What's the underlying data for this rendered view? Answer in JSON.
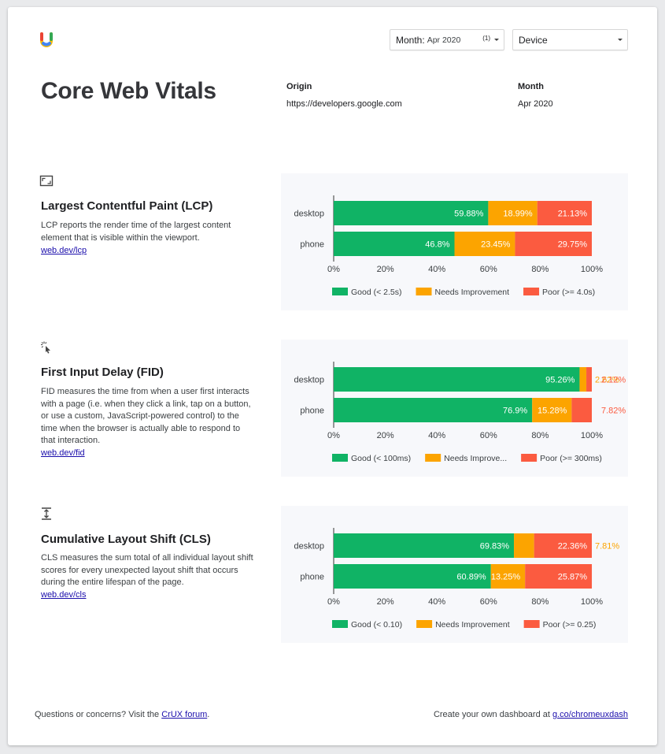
{
  "header": {
    "month_filter": {
      "label": "Month:",
      "value": "Apr 2020",
      "count": "(1)"
    },
    "device_filter": {
      "value": "Device"
    }
  },
  "title": "Core Web Vitals",
  "origin": {
    "label": "Origin",
    "value": "https://developers.google.com"
  },
  "month": {
    "label": "Month",
    "value": "Apr 2020"
  },
  "colors": {
    "good": "#10b365",
    "needs": "#fca400",
    "poor": "#fb5b40"
  },
  "metrics": [
    {
      "icon": "lcp-frame-icon",
      "heading": "Largest Contentful Paint (LCP)",
      "description": "LCP reports the render time of the largest content element that is visible within the viewport.",
      "link": "web.dev/lcp"
    },
    {
      "icon": "fid-click-icon",
      "heading": "First Input Delay (FID)",
      "description": "FID measures the time from when a user first interacts with a page (i.e. when they click a link, tap on a button, or use a custom, JavaScript-powered control) to the time when the browser is actually able to respond to that interaction.",
      "link": "web.dev/fid"
    },
    {
      "icon": "cls-shift-icon",
      "heading": "Cumulative Layout Shift (CLS)",
      "description": "CLS measures the sum total of all individual layout shift scores for every unexpected layout shift that occurs during the entire lifespan of the page.",
      "link": "web.dev/cls"
    }
  ],
  "chart_data": [
    {
      "type": "bar",
      "orientation": "horizontal",
      "stacked": true,
      "categories": [
        "desktop",
        "phone"
      ],
      "series": [
        {
          "name": "Good (< 2.5s)",
          "values": [
            59.88,
            46.8
          ],
          "labels": [
            "59.88%",
            "46.8%"
          ]
        },
        {
          "name": "Needs Improvement",
          "values": [
            18.99,
            23.45
          ],
          "labels": [
            "18.99%",
            "23.45%"
          ]
        },
        {
          "name": "Poor (>= 4.0s)",
          "values": [
            21.13,
            29.75
          ],
          "labels": [
            "21.13%",
            "29.75%"
          ]
        }
      ],
      "ticks": [
        "0%",
        "20%",
        "40%",
        "60%",
        "80%",
        "100%"
      ],
      "xlim": [
        0,
        100
      ],
      "legend": "bottom"
    },
    {
      "type": "bar",
      "orientation": "horizontal",
      "stacked": true,
      "categories": [
        "desktop",
        "phone"
      ],
      "series": [
        {
          "name": "Good (< 100ms)",
          "values": [
            95.26,
            76.9
          ],
          "labels": [
            "95.26%",
            "76.9%"
          ]
        },
        {
          "name": "Needs Improve...",
          "values": [
            2.62,
            15.28
          ],
          "labels": [
            "2.62%",
            "15.28%"
          ]
        },
        {
          "name": "Poor (>= 300ms)",
          "values": [
            2.12,
            7.82
          ],
          "labels": [
            "2.12%",
            "7.82%"
          ]
        }
      ],
      "ticks": [
        "0%",
        "20%",
        "40%",
        "60%",
        "80%",
        "100%"
      ],
      "xlim": [
        0,
        100
      ],
      "legend": "bottom"
    },
    {
      "type": "bar",
      "orientation": "horizontal",
      "stacked": true,
      "categories": [
        "desktop",
        "phone"
      ],
      "series": [
        {
          "name": "Good (< 0.10)",
          "values": [
            69.83,
            60.89
          ],
          "labels": [
            "69.83%",
            "60.89%"
          ]
        },
        {
          "name": "Needs Improvement",
          "values": [
            7.81,
            13.25
          ],
          "labels": [
            "7.81%",
            "13.25%"
          ]
        },
        {
          "name": "Poor (>= 0.25)",
          "values": [
            22.36,
            25.87
          ],
          "labels": [
            "22.36%",
            "25.87%"
          ]
        }
      ],
      "ticks": [
        "0%",
        "20%",
        "40%",
        "60%",
        "80%",
        "100%"
      ],
      "xlim": [
        0,
        100
      ],
      "legend": "bottom"
    }
  ],
  "footer": {
    "left_text": "Questions or concerns? Visit the ",
    "left_link": "CrUX forum",
    "left_end": ".",
    "right_text": "Create your own dashboard at ",
    "right_link": "g.co/chromeuxdash"
  }
}
